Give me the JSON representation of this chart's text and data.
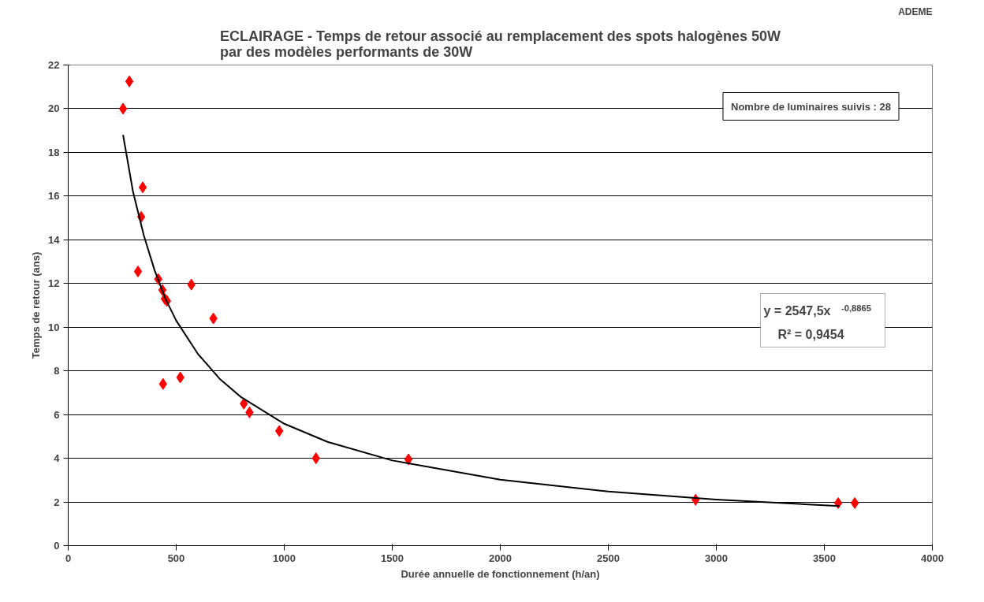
{
  "chart_data": {
    "type": "scatter",
    "title": "ECLAIRAGE - Temps de retour associé au remplacement des spots halogènes 50W\npar des modèles performants de 30W",
    "xlabel": "Durée annuelle de fonctionnement (h/an)",
    "ylabel": "Temps de retour (ans)",
    "annotations": [
      "ADEME",
      "Nombre de luminaires suivis : 28",
      "y = 2547,5x$^{-0,8865}$",
      "R² = 0,9454"
    ],
    "series": [
      {
        "color": "#ff0000",
        "marker": "diamond",
        "x": [
          254,
          283,
          345,
          338,
          323,
          417,
          436,
          447,
          457,
          570,
          672,
          439,
          519,
          813,
          839,
          977,
          1575,
          2904,
          3641,
          1147,
          3564
        ],
        "values": [
          20.0,
          21.25,
          16.4,
          15.05,
          12.55,
          12.2,
          11.7,
          11.3,
          11.2,
          11.95,
          10.4,
          7.4,
          7.7,
          6.5,
          6.1,
          5.25,
          3.95,
          2.1,
          1.95,
          4.0,
          1.95
        ]
      },
      {
        "type": "line",
        "color": "#000000",
        "marker": "none",
        "x": [
          254,
          300,
          350,
          400,
          450,
          500,
          600,
          700,
          800,
          1000,
          1200,
          1500,
          2000,
          2500,
          3000,
          3570
        ],
        "values": [
          18.8,
          16.2,
          14.2,
          12.6,
          11.3,
          10.3,
          8.78,
          7.65,
          6.8,
          5.58,
          4.75,
          3.9,
          3.02,
          2.48,
          2.11,
          1.81
        ]
      }
    ],
    "xlim": [
      0,
      4000
    ],
    "xticks": [
      0,
      500,
      1000,
      1500,
      2000,
      2500,
      3000,
      3500,
      4000
    ],
    "ylim": [
      0,
      22
    ],
    "yticks": [
      0,
      2,
      4,
      6,
      8,
      10,
      12,
      14,
      16,
      18,
      20,
      22
    ],
    "grid": "y"
  }
}
